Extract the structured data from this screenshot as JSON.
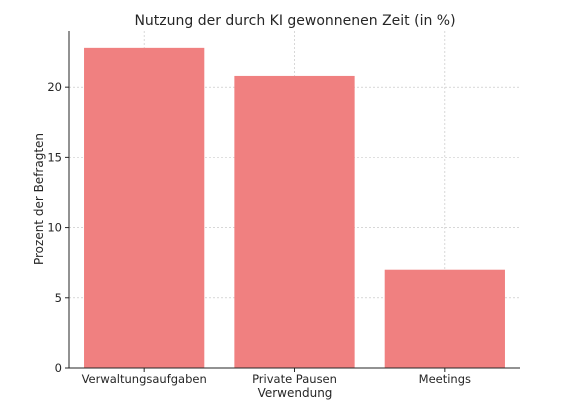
{
  "chart_data": {
    "type": "bar",
    "title": "Nutzung der durch KI gewonnenen Zeit (in %)",
    "xlabel": "Verwendung",
    "ylabel": "Prozent der Befragten",
    "categories": [
      "Verwaltungsaufgaben",
      "Private Pausen",
      "Meetings"
    ],
    "values": [
      22.8,
      20.8,
      7.0
    ],
    "ylim": [
      0,
      24
    ],
    "yticks": [
      0,
      5,
      10,
      15,
      20
    ],
    "grid": true,
    "bar_color": "#f08080"
  }
}
